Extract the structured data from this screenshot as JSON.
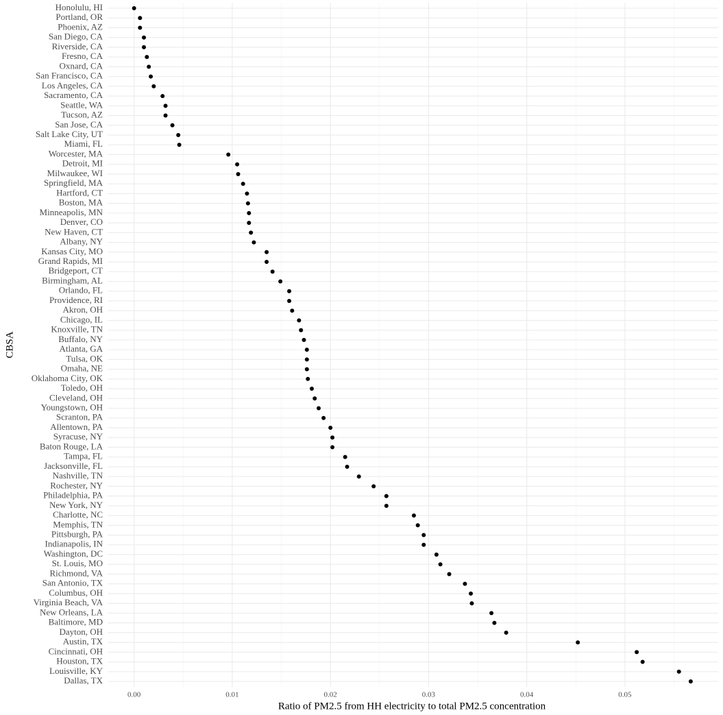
{
  "chart_data": {
    "type": "dot",
    "y_label": "CBSA",
    "x_label": "Ratio of PM2.5 from HH electricity to total PM2.5 concentration",
    "categories": [
      "Honolulu, HI",
      "Portland, OR",
      "Phoenix, AZ",
      "San Diego, CA",
      "Riverside, CA",
      "Fresno, CA",
      "Oxnard, CA",
      "San Francisco, CA",
      "Los Angeles, CA",
      "Sacramento, CA",
      "Seattle, WA",
      "Tucson, AZ",
      "San Jose, CA",
      "Salt Lake City, UT",
      "Miami, FL",
      "Worcester, MA",
      "Detroit, MI",
      "Milwaukee, WI",
      "Springfield, MA",
      "Hartford, CT",
      "Boston, MA",
      "Minneapolis, MN",
      "Denver, CO",
      "New Haven, CT",
      "Albany, NY",
      "Kansas City, MO",
      "Grand Rapids, MI",
      "Bridgeport, CT",
      "Birmingham, AL",
      "Orlando, FL",
      "Providence, RI",
      "Akron, OH",
      "Chicago, IL",
      "Knoxville, TN",
      "Buffalo, NY",
      "Atlanta, GA",
      "Tulsa, OK",
      "Omaha, NE",
      "Oklahoma City, OK",
      "Toledo, OH",
      "Cleveland, OH",
      "Youngstown, OH",
      "Scranton, PA",
      "Allentown, PA",
      "Syracuse, NY",
      "Baton Rouge, LA",
      "Tampa, FL",
      "Jacksonville, FL",
      "Nashville, TN",
      "Rochester, NY",
      "Philadelphia, PA",
      "New York, NY",
      "Charlotte, NC",
      "Memphis, TN",
      "Pittsburgh, PA",
      "Indianapolis, IN",
      "Washington, DC",
      "St. Louis, MO",
      "Richmond, VA",
      "San Antonio, TX",
      "Columbus, OH",
      "Virginia Beach, VA",
      "New Orleans, LA",
      "Baltimore, MD",
      "Dayton, OH",
      "Austin, TX",
      "Cincinnati, OH",
      "Houston, TX",
      "Louisville, KY",
      "Dallas, TX"
    ],
    "values": [
      0.0,
      0.0006,
      0.0006,
      0.001,
      0.001,
      0.0013,
      0.0015,
      0.0017,
      0.002,
      0.0029,
      0.0032,
      0.0032,
      0.0039,
      0.0045,
      0.0046,
      0.0096,
      0.0105,
      0.0106,
      0.0111,
      0.0115,
      0.0116,
      0.0117,
      0.0117,
      0.0119,
      0.0122,
      0.0135,
      0.0135,
      0.0141,
      0.0149,
      0.0158,
      0.0158,
      0.0161,
      0.0168,
      0.017,
      0.0173,
      0.0176,
      0.0176,
      0.0176,
      0.0177,
      0.0181,
      0.0184,
      0.0188,
      0.0193,
      0.02,
      0.0202,
      0.0202,
      0.0215,
      0.0217,
      0.0229,
      0.0244,
      0.0257,
      0.0257,
      0.0285,
      0.0289,
      0.0295,
      0.0295,
      0.0308,
      0.0312,
      0.0321,
      0.0337,
      0.0343,
      0.0344,
      0.0364,
      0.0367,
      0.0379,
      0.0452,
      0.0512,
      0.0518,
      0.0555,
      0.0567
    ],
    "color": "#000000",
    "xlim": [
      -0.0027,
      0.0595
    ],
    "xticks": [
      {
        "value": 0,
        "label": "0.00"
      },
      {
        "value": 0.01,
        "label": "0.01"
      },
      {
        "value": 0.02,
        "label": "0.02"
      },
      {
        "value": 0.03,
        "label": "0.03"
      },
      {
        "value": 0.04,
        "label": "0.04"
      },
      {
        "value": 0.05,
        "label": "0.05"
      }
    ],
    "grid": true
  }
}
